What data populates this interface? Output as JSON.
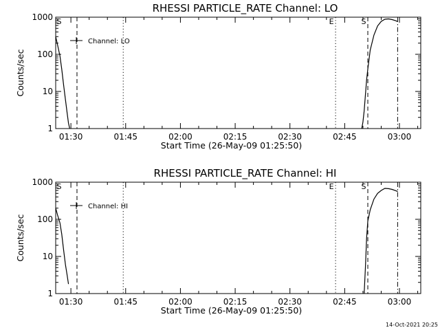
{
  "chart_data": [
    {
      "type": "line",
      "title": "RHESSI PARTICLE_RATE Channel: LO",
      "xlabel": "Start Time (26-May-09 01:25:50)",
      "ylabel": "Counts/sec",
      "y_scale": "log",
      "ylim": [
        1,
        1000
      ],
      "xlim": [
        "01:25:50",
        "03:05:50"
      ],
      "x_ticks": [
        "01:30",
        "01:45",
        "02:00",
        "02:15",
        "02:30",
        "02:45",
        "03:00"
      ],
      "y_ticks": [
        "1",
        "10",
        "100",
        "1000"
      ],
      "legend": {
        "label": "Channel: LO",
        "position": "top-left"
      },
      "vlines": [
        {
          "t": "01:31:40",
          "style": "dashed"
        },
        {
          "t": "01:44:20",
          "style": "dotted"
        },
        {
          "t": "02:42:30",
          "style": "dotted",
          "label": "E"
        },
        {
          "t": "02:51:20",
          "style": "dashed",
          "label": "S"
        },
        {
          "t": "02:59:30",
          "style": "dashdot"
        }
      ],
      "edge_labels": [
        {
          "t": "01:25:50",
          "label": "S"
        }
      ],
      "series": [
        {
          "segments": [
            {
              "t": [
                "01:25:50",
                "01:26:20",
                "01:27:00",
                "01:27:30",
                "01:28:00",
                "01:28:30",
                "01:29:00",
                "01:29:20",
                "01:29:40"
              ],
              "y": [
                300,
                180,
                90,
                40,
                15,
                6,
                2.5,
                1.4,
                1.0
              ]
            },
            {
              "t": [
                "02:49:40",
                "02:50:00",
                "02:50:20",
                "02:50:40",
                "02:51:00",
                "02:51:20",
                "02:52:00",
                "02:53:00",
                "02:54:00",
                "02:55:00",
                "02:56:00",
                "02:57:00",
                "02:58:00",
                "02:59:00",
                "02:59:30"
              ],
              "y": [
                1.0,
                1.5,
                3,
                8,
                20,
                40,
                130,
                330,
                580,
                770,
                880,
                900,
                860,
                800,
                760
              ]
            }
          ]
        }
      ]
    },
    {
      "type": "line",
      "title": "RHESSI PARTICLE_RATE Channel: HI",
      "xlabel": "Start Time (26-May-09 01:25:50)",
      "ylabel": "Counts/sec",
      "y_scale": "log",
      "ylim": [
        1,
        1000
      ],
      "xlim": [
        "01:25:50",
        "03:05:50"
      ],
      "x_ticks": [
        "01:30",
        "01:45",
        "02:00",
        "02:15",
        "02:30",
        "02:45",
        "03:00"
      ],
      "y_ticks": [
        "1",
        "10",
        "100",
        "1000"
      ],
      "legend": {
        "label": "Channel: HI",
        "position": "top-left"
      },
      "vlines": [
        {
          "t": "01:31:40",
          "style": "dashed"
        },
        {
          "t": "01:44:20",
          "style": "dotted"
        },
        {
          "t": "02:42:30",
          "style": "dotted",
          "label": "E"
        },
        {
          "t": "02:51:20",
          "style": "dashed",
          "label": "S"
        },
        {
          "t": "02:59:30",
          "style": "dashdot"
        }
      ],
      "edge_labels": [
        {
          "t": "01:25:50",
          "label": "S"
        }
      ],
      "series": [
        {
          "segments": [
            {
              "t": [
                "01:25:50",
                "01:26:20",
                "01:27:00",
                "01:27:30",
                "01:28:00",
                "01:28:30",
                "01:29:00",
                "01:29:20"
              ],
              "y": [
                200,
                130,
                80,
                40,
                15,
                6,
                3,
                1.8
              ]
            },
            {
              "t": [
                "02:50:20",
                "02:50:40",
                "02:51:00",
                "02:51:20",
                "02:52:00",
                "02:53:00",
                "02:54:00",
                "02:55:00",
                "02:56:00",
                "02:57:00",
                "02:58:00",
                "02:59:00",
                "02:59:30"
              ],
              "y": [
                1.0,
                5,
                30,
                90,
                180,
                350,
                500,
                600,
                680,
                670,
                640,
                590,
                560
              ]
            }
          ]
        }
      ]
    }
  ],
  "timestamp": "14-Oct-2021 20:25"
}
